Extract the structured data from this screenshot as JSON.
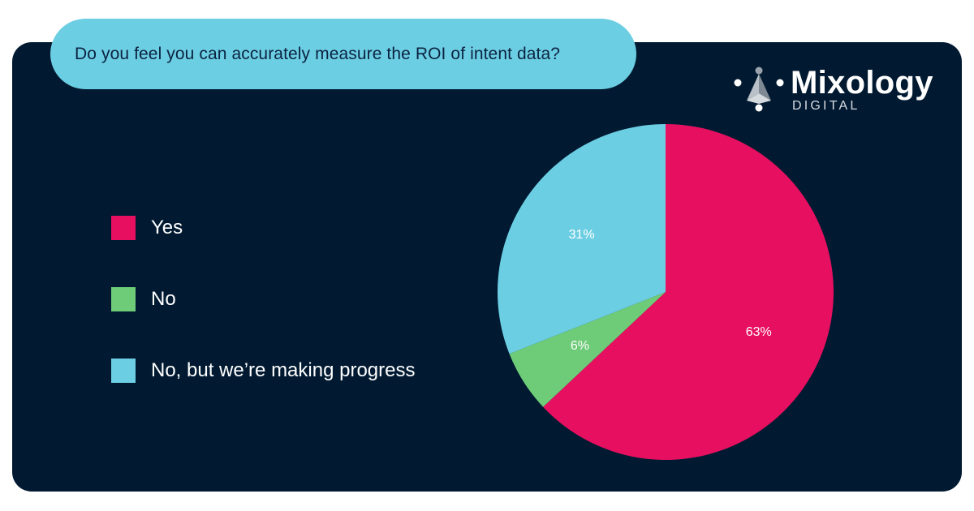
{
  "question": "Do you feel you can accurately measure the ROI of intent data?",
  "brand": {
    "name": "Mixology",
    "sub": "DIGITAL"
  },
  "colors": {
    "card_background": "#011a31",
    "question_background": "#6ccee3",
    "yes": "#e60f60",
    "no": "#6ecb78",
    "progress": "#6ccee3"
  },
  "chart_data": {
    "type": "pie",
    "title": "Do you feel you can accurately measure the ROI of intent data?",
    "legend_position": "left",
    "categories": [
      "Yes",
      "No",
      "No, but we’re making progress"
    ],
    "values": [
      63,
      6,
      31
    ],
    "value_labels": [
      "63%",
      "6%",
      "31%"
    ],
    "colors": [
      "#e60f60",
      "#6ecb78",
      "#6ccee3"
    ]
  }
}
